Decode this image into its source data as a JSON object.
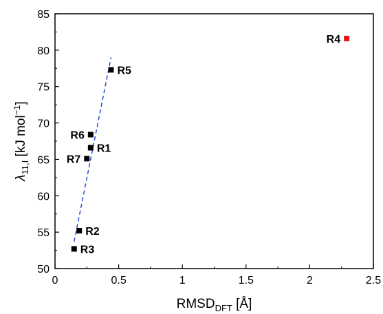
{
  "chart_data": {
    "type": "scatter",
    "title": "",
    "xlabel": {
      "main": "RMSD",
      "sub": "DFT",
      "rest": " [Å]"
    },
    "ylabel": {
      "lambda": "λ",
      "sub": "11,I",
      "mid": " [kJ mol",
      "sup": "−1",
      "end": "]"
    },
    "xlim": [
      0,
      2.5
    ],
    "ylim": [
      50,
      85
    ],
    "xticks": [
      0,
      0.5,
      1,
      1.5,
      2,
      2.5
    ],
    "xtick_labels": [
      "0",
      "0.5",
      "1",
      "1.5",
      "2",
      "2.5"
    ],
    "yticks": [
      50,
      55,
      60,
      65,
      70,
      75,
      80,
      85
    ],
    "ytick_labels": [
      "50",
      "55",
      "60",
      "65",
      "70",
      "75",
      "80",
      "85"
    ],
    "grid": false,
    "points": [
      {
        "label": "R1",
        "x": 0.28,
        "y": 66.6,
        "color": "#000000",
        "label_side": "right"
      },
      {
        "label": "R2",
        "x": 0.19,
        "y": 55.2,
        "color": "#000000",
        "label_side": "right"
      },
      {
        "label": "R3",
        "x": 0.15,
        "y": 52.7,
        "color": "#000000",
        "label_side": "right"
      },
      {
        "label": "R4",
        "x": 2.29,
        "y": 81.6,
        "color": "#e8141c",
        "label_side": "left"
      },
      {
        "label": "R5",
        "x": 0.44,
        "y": 77.3,
        "color": "#000000",
        "label_side": "right"
      },
      {
        "label": "R6",
        "x": 0.28,
        "y": 68.4,
        "color": "#000000",
        "label_side": "left"
      },
      {
        "label": "R7",
        "x": 0.25,
        "y": 65.1,
        "color": "#000000",
        "label_side": "left"
      }
    ],
    "fit_line": {
      "x": [
        0.15,
        0.44
      ],
      "y": [
        53.7,
        79.0
      ],
      "color": "#1f3fd6",
      "style": "dashed"
    }
  }
}
